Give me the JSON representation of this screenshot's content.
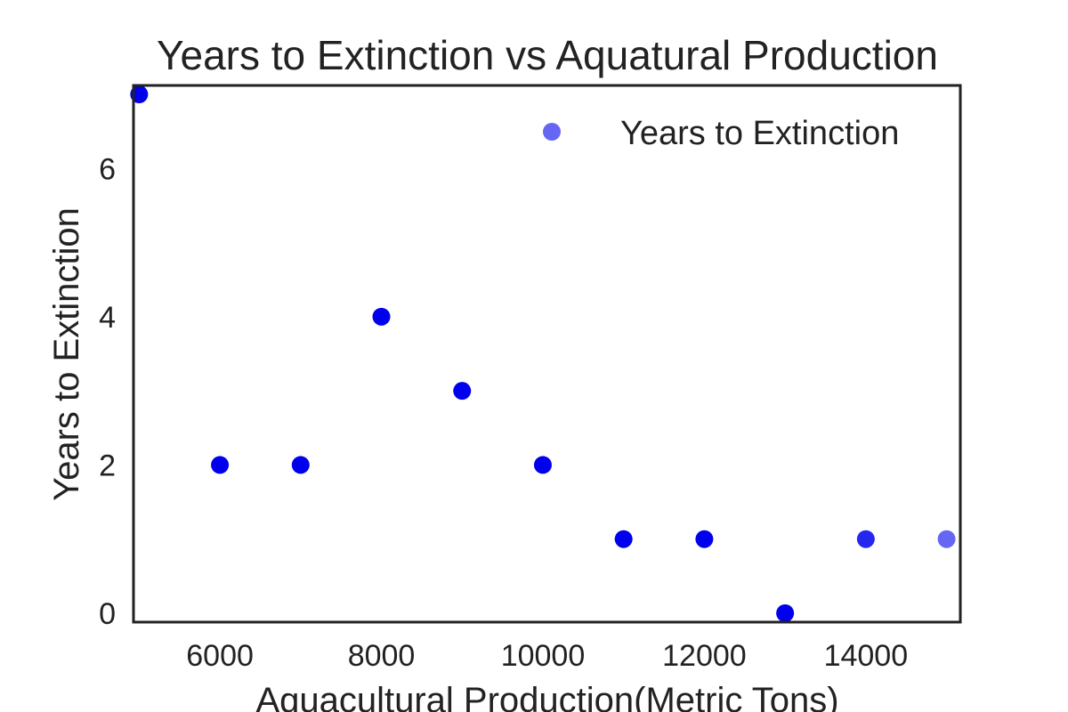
{
  "chart_data": {
    "type": "scatter",
    "title": "Years to Extinction vs Aquatural Production",
    "xlabel": "Aquacultural Production(Metric Tons)",
    "ylabel": "Years to Extinction",
    "xlim": [
      4930,
      15170
    ],
    "ylim": [
      -0.12,
      7.12
    ],
    "xticks": [
      6000,
      8000,
      10000,
      12000,
      14000
    ],
    "yticks": [
      0,
      2,
      4,
      6
    ],
    "grid": false,
    "legend": {
      "placement": "top-right",
      "entries": [
        "Years to Extinction"
      ]
    },
    "series": [
      {
        "name": "Years to Extinction",
        "color": "#0000ee",
        "points": [
          {
            "x": 5000,
            "y": 7,
            "alpha": 1.0
          },
          {
            "x": 6000,
            "y": 2,
            "alpha": 1.0
          },
          {
            "x": 7000,
            "y": 2,
            "alpha": 1.0
          },
          {
            "x": 8000,
            "y": 4,
            "alpha": 1.0
          },
          {
            "x": 9000,
            "y": 3,
            "alpha": 1.0
          },
          {
            "x": 10000,
            "y": 2,
            "alpha": 1.0
          },
          {
            "x": 11000,
            "y": 1,
            "alpha": 1.0
          },
          {
            "x": 12000,
            "y": 1,
            "alpha": 1.0
          },
          {
            "x": 13000,
            "y": 0,
            "alpha": 1.0
          },
          {
            "x": 14000,
            "y": 1,
            "alpha": 0.85
          },
          {
            "x": 15000,
            "y": 1,
            "alpha": 0.6
          }
        ]
      }
    ]
  }
}
